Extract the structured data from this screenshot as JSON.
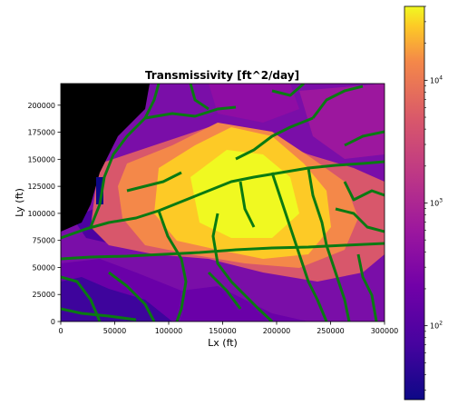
{
  "chart_data": {
    "type": "heatmap",
    "title": "Transmissivity [ft^2/day]",
    "xlabel": "Lx (ft)",
    "ylabel": "Ly (ft)",
    "xlim": [
      0,
      300000
    ],
    "ylim": [
      0,
      220000
    ],
    "x_ticks": [
      0,
      50000,
      100000,
      150000,
      200000,
      250000,
      300000
    ],
    "x_tick_labels": [
      "0",
      "50000",
      "100000",
      "150000",
      "200000",
      "250000",
      "300000"
    ],
    "y_ticks": [
      0,
      25000,
      50000,
      75000,
      100000,
      125000,
      150000,
      175000,
      200000
    ],
    "y_tick_labels": [
      "0",
      "25000",
      "50000",
      "75000",
      "100000",
      "125000",
      "150000",
      "175000",
      "200000"
    ],
    "colorbar": {
      "scale": "log",
      "range": [
        25,
        40000
      ],
      "colormap": "plasma",
      "ticks": [
        100,
        1000,
        10000
      ],
      "tick_labels": [
        "10",
        "10",
        "10"
      ],
      "tick_exponents": [
        "2",
        "3",
        "4"
      ]
    },
    "overlay": {
      "name": "",
      "color": "#0a7a12"
    },
    "masked_color": "#000000",
    "grid": false
  }
}
